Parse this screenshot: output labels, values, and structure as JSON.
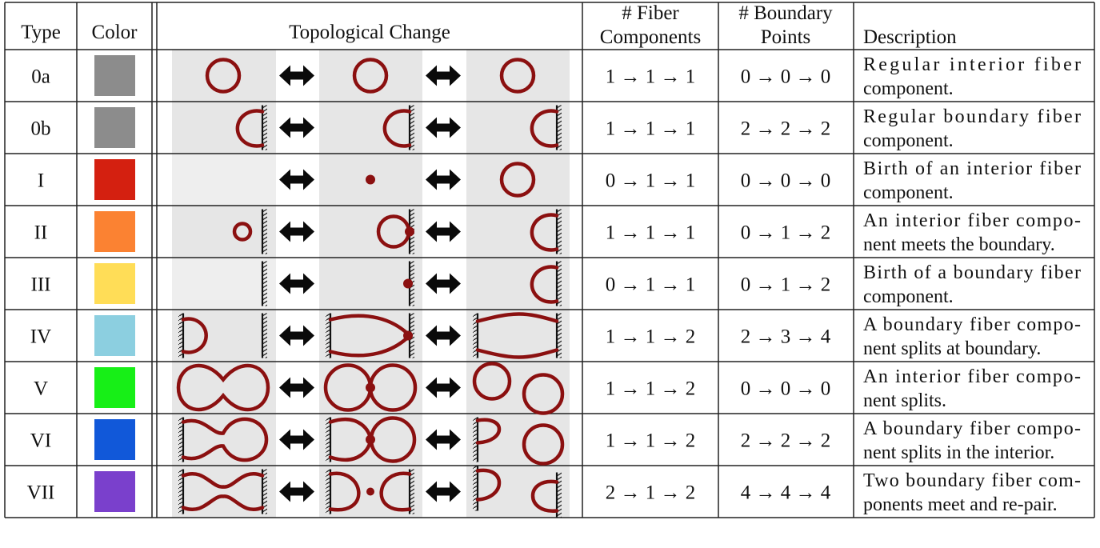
{
  "headers": {
    "type": "Type",
    "color": "Color",
    "change": "Topological Change",
    "fiber_1": "# Fiber",
    "fiber_2": "Components",
    "boundary_1": "# Boundary",
    "boundary_2": "Points",
    "description": "Description"
  },
  "arrow_glyph": "double-headed-arrow",
  "curve_color": "#8b1010",
  "rows": [
    {
      "type": "0a",
      "color": "#8c8c8c",
      "fiber": "1 → 1 → 1",
      "boundary": "0 → 0 → 0",
      "desc": [
        "Regular interior fiber",
        "component."
      ],
      "frames": [
        "small-circle",
        "small-circle",
        "small-circle"
      ]
    },
    {
      "type": "0b",
      "color": "#8c8c8c",
      "fiber": "1 → 1 → 1",
      "boundary": "2 → 2 → 2",
      "desc": [
        "Regular boundary fiber",
        "component."
      ],
      "frames": [
        "boundary-arc",
        "boundary-arc",
        "boundary-arc"
      ]
    },
    {
      "type": "I",
      "color": "#d42010",
      "fiber": "0 → 1 → 1",
      "boundary": "0 → 0 → 0",
      "desc": [
        "Birth of an interior fiber",
        "component."
      ],
      "frames": [
        "empty",
        "dot",
        "small-circle"
      ]
    },
    {
      "type": "II",
      "color": "#fb8232",
      "fiber": "1 → 1 → 1",
      "boundary": "0 → 1 → 2",
      "desc": [
        "An interior fiber compo-",
        "nent meets the boundary."
      ],
      "frames": [
        "tiny-circle-near-wall",
        "circle-touching-wall",
        "boundary-arc"
      ]
    },
    {
      "type": "III",
      "color": "#ffdd57",
      "fiber": "0 → 1 → 1",
      "boundary": "0 → 1 → 2",
      "desc": [
        "Birth of a boundary fiber",
        "component."
      ],
      "frames": [
        "wall-only",
        "dot-on-wall",
        "boundary-arc"
      ]
    },
    {
      "type": "IV",
      "color": "#8ccfe0",
      "fiber": "1 → 1 → 2",
      "boundary": "2 → 3 → 4",
      "desc": [
        "A boundary fiber compo-",
        "nent splits at boundary."
      ],
      "frames": [
        "left-arc-two-walls",
        "ellipse-touching-right-wall",
        "ellipse-spanning-walls"
      ]
    },
    {
      "type": "V",
      "color": "#17ef17",
      "fiber": "1 → 1 → 2",
      "boundary": "0 → 0 → 0",
      "desc": [
        "An interior fiber compo-",
        "nent splits."
      ],
      "frames": [
        "peanut",
        "figure-eight",
        "two-circles"
      ]
    },
    {
      "type": "VI",
      "color": "#1158d9",
      "fiber": "1 → 1 → 2",
      "boundary": "2 → 2 → 2",
      "desc": [
        "A boundary fiber compo-",
        "nent splits in the interior."
      ],
      "frames": [
        "peanut-on-wall",
        "figure-eight-on-wall",
        "arc-and-circle"
      ]
    },
    {
      "type": "VII",
      "color": "#7a40cc",
      "fiber": "2 → 1 → 2",
      "boundary": "4 → 4 → 4",
      "desc": [
        "Two boundary fiber com-",
        "ponents meet and re-pair."
      ],
      "frames": [
        "peanut-two-walls",
        "two-arcs-touching",
        "two-arcs-separated"
      ]
    }
  ]
}
